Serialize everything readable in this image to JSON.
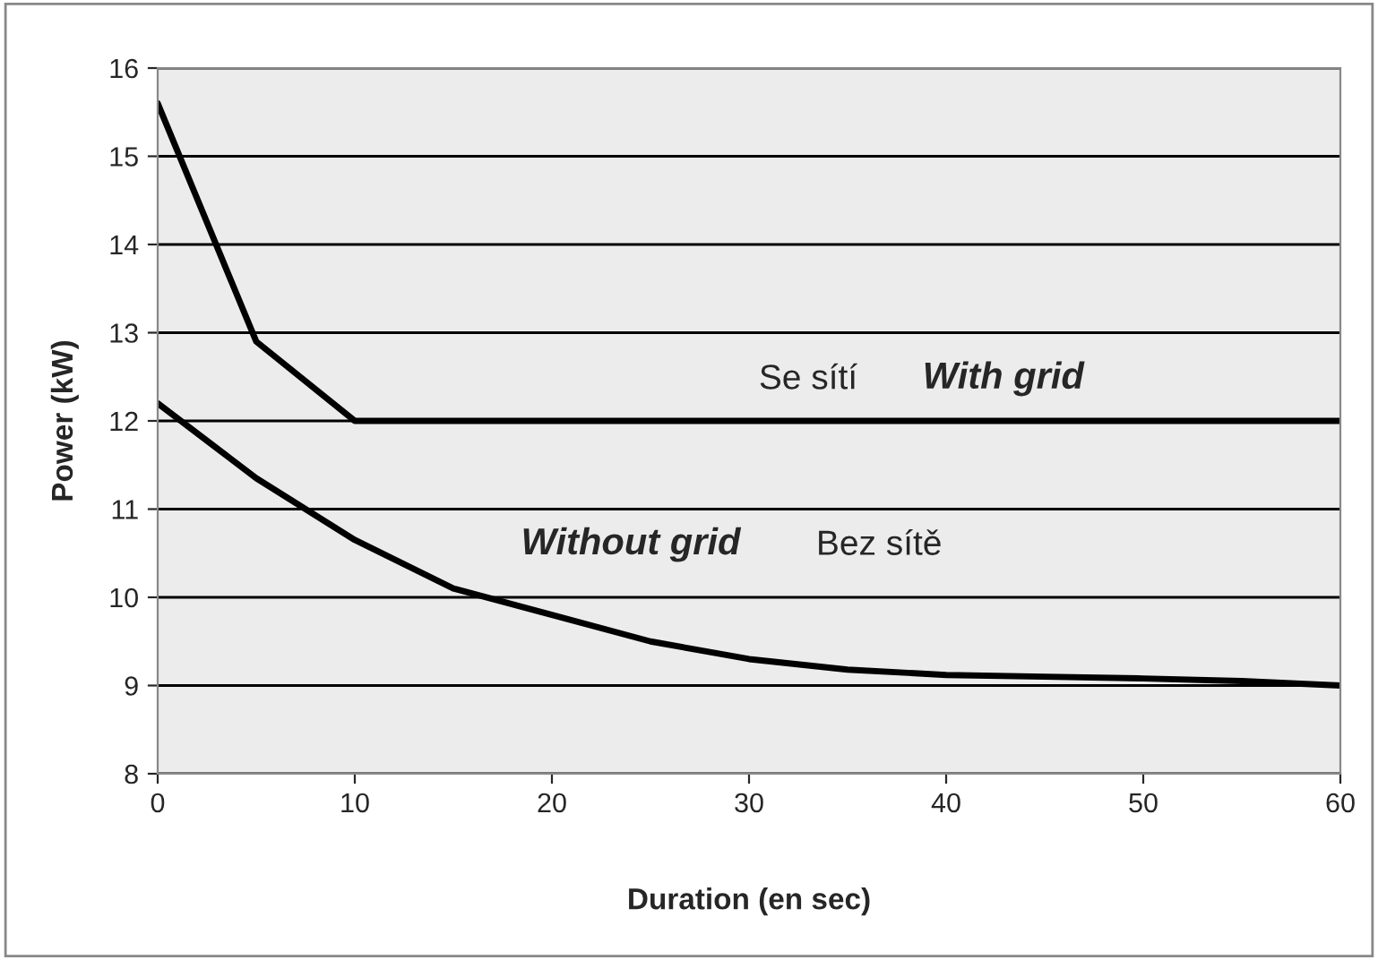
{
  "chart_data": {
    "type": "line",
    "xlabel": "Duration (en sec)",
    "ylabel": "Power (kW)",
    "series": [
      {
        "color": "#000000",
        "x": [
          0,
          5,
          10,
          60
        ],
        "values": [
          15.6,
          12.9,
          12.0,
          12.0
        ]
      },
      {
        "color": "#000000",
        "x": [
          0,
          5,
          10,
          15,
          20,
          25,
          30,
          35,
          40,
          45,
          50,
          55,
          60
        ],
        "values": [
          12.2,
          11.35,
          10.65,
          10.1,
          9.8,
          9.5,
          9.3,
          9.18,
          9.12,
          9.1,
          9.08,
          9.05,
          9.0
        ]
      }
    ],
    "annotations": [
      "Se sítí",
      "With grid",
      "Without grid",
      "Bez sítě"
    ],
    "xlim": [
      0,
      60
    ],
    "xticks": [
      0,
      10,
      20,
      30,
      40,
      50,
      60
    ],
    "ylim": [
      8,
      16
    ],
    "yticks": [
      8,
      9,
      10,
      11,
      12,
      13,
      14,
      15,
      16
    ],
    "grid": "y",
    "marker": "none",
    "line_style": "solid"
  }
}
